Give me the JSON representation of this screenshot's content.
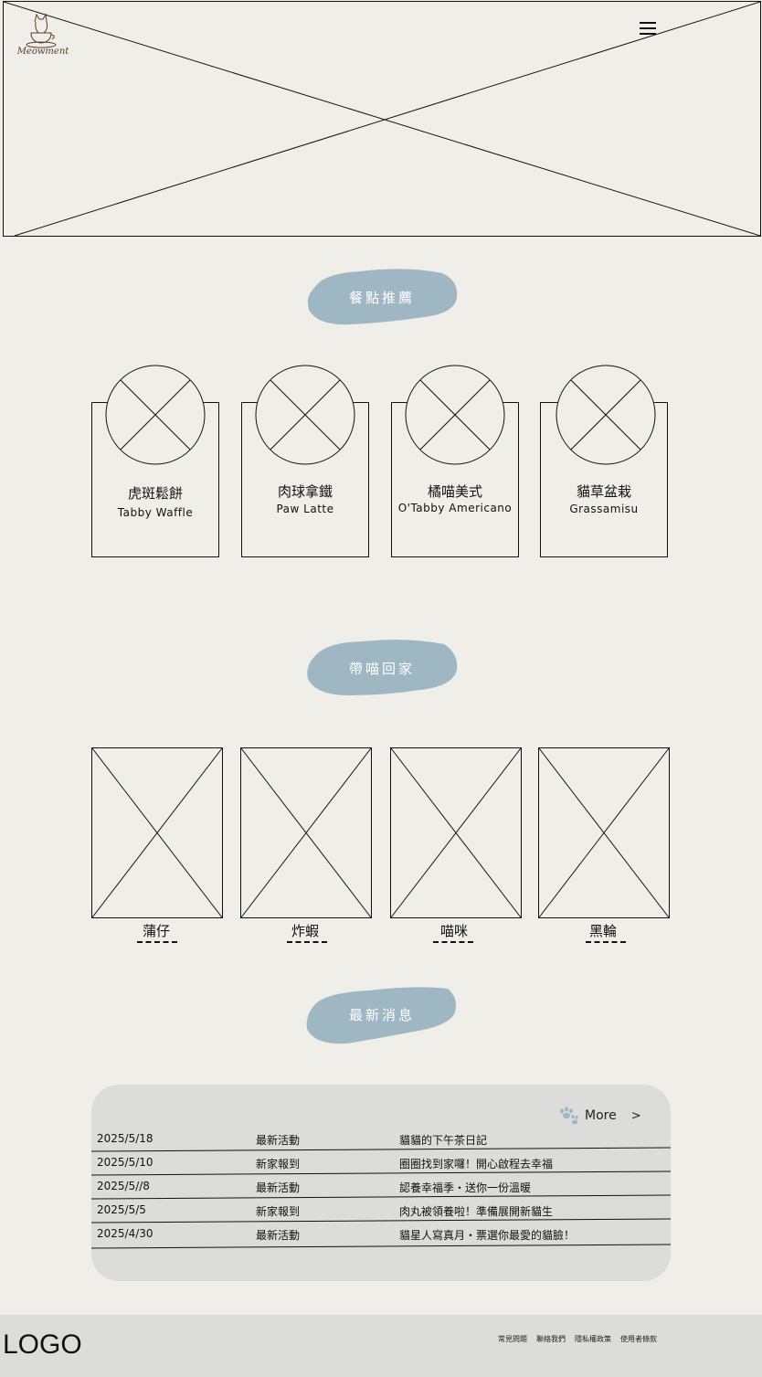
{
  "header": {
    "logo_text": "Meowment",
    "menu_icon": "hamburger-icon"
  },
  "sections": {
    "recommend": "餐點推薦",
    "adopt": "帶喵回家",
    "news": "最新消息"
  },
  "menu_items": [
    {
      "title": "虎斑鬆餅",
      "subtitle": "Tabby Waffle"
    },
    {
      "title": "肉球拿鐵",
      "subtitle": "Paw Latte"
    },
    {
      "title": "橘喵美式",
      "subtitle": "O'Tabby Americano"
    },
    {
      "title": "貓草盆栽",
      "subtitle": "Grassamisu"
    }
  ],
  "cats": [
    {
      "name": "蒲仔"
    },
    {
      "name": "炸蝦"
    },
    {
      "name": "喵咪"
    },
    {
      "name": "黑輪"
    }
  ],
  "news": {
    "more_label": "More",
    "more_arrow": ">",
    "rows": [
      {
        "date": "2025/5/18",
        "category": "最新活動",
        "title": "貓貓的下午茶日記"
      },
      {
        "date": "2025/5/10",
        "category": "新家報到",
        "title": "圈圈找到家囉！開心啟程去幸福"
      },
      {
        "date": "2025/5//8",
        "category": "最新活動",
        "title": "認養幸福季・送你一份溫暖"
      },
      {
        "date": "2025/5/5",
        "category": "新家報到",
        "title": "肉丸被領養啦！準備展開新貓生"
      },
      {
        "date": "2025/4/30",
        "category": "最新活動",
        "title": "貓星人寫真月・票選你最愛的貓臉！"
      }
    ]
  },
  "footer": {
    "logo": "LOGO",
    "links": [
      "常見問題",
      "聯絡我們",
      "隱私權政策",
      "使用者條款"
    ]
  },
  "colors": {
    "background": "#f0eee8",
    "badge": "#9eb7c2",
    "panel": "#dcdcdb"
  }
}
